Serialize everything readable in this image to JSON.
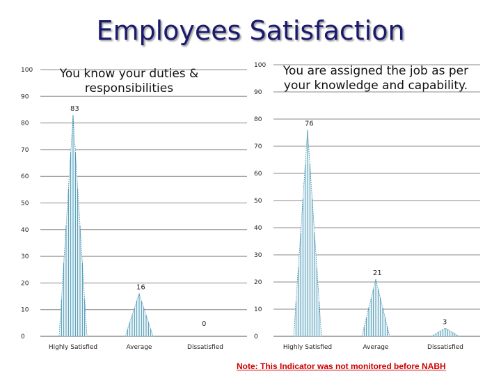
{
  "page": {
    "title": "Employees Satisfaction",
    "footnote": "Note: This Indicator was not monitored before NABH"
  },
  "chart_data": [
    {
      "type": "bar",
      "title": "You know your duties & responsibilities",
      "categories": [
        "Highly Satisfied",
        "Average",
        "Dissatisfied"
      ],
      "values": [
        83,
        16,
        0
      ],
      "data_labels": [
        "83",
        "16",
        "0"
      ],
      "ylim": [
        0,
        100
      ],
      "y_ticks": [
        0,
        10,
        20,
        30,
        40,
        50,
        60,
        70,
        80,
        90,
        100
      ],
      "y_tick_labels": [
        "0",
        "10",
        "20",
        "30",
        "40",
        "50",
        "60",
        "70",
        "80",
        "90",
        "100"
      ],
      "grid": true,
      "legend": "none"
    },
    {
      "type": "bar",
      "title": "You are assigned the job as per your knowledge and capability.",
      "categories": [
        "Highly Satisfied",
        "Average",
        "Dissatisfied"
      ],
      "values": [
        76,
        21,
        3
      ],
      "data_labels": [
        "76",
        "21",
        "3"
      ],
      "ylim": [
        0,
        100
      ],
      "y_ticks": [
        0,
        10,
        20,
        30,
        40,
        50,
        60,
        70,
        80,
        90,
        100
      ],
      "y_tick_labels": [
        "0",
        "10",
        "20",
        "30",
        "40",
        "50",
        "60",
        "70",
        "80",
        "90",
        "100"
      ],
      "grid": true,
      "legend": "none"
    }
  ],
  "colors": {
    "series": "#2e86a6",
    "title": "#1a1a6e",
    "grid": "#888888",
    "footnote": "#cc0000"
  }
}
